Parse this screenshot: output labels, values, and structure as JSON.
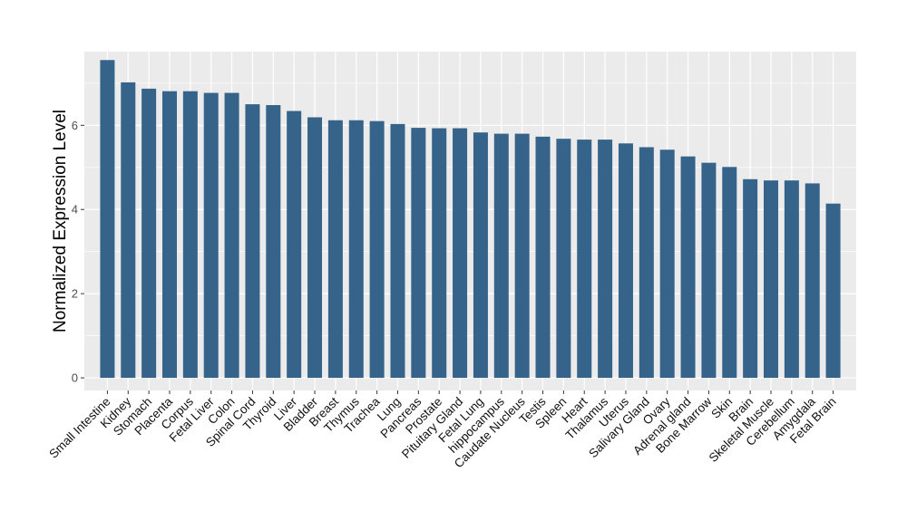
{
  "chart_data": {
    "type": "bar",
    "ylabel": "Normalized Expression Level",
    "xlabel": "",
    "ylim": [
      -0.3,
      7.75
    ],
    "yticks": [
      0,
      2,
      4,
      6
    ],
    "grid": true,
    "colors": {
      "bar": "#36638a",
      "panel": "#ebebeb",
      "grid": "#ffffff"
    },
    "categories": [
      "Small Intestine",
      "Kidney",
      "Stomach",
      "Placenta",
      "Corpus",
      "Fetal Liver",
      "Colon",
      "Spinal Cord",
      "Thyroid",
      "Liver",
      "Bladder",
      "Breast",
      "Thymus",
      "Trachea",
      "Lung",
      "Pancreas",
      "Prostate",
      "Pituitary Gland",
      "Fetal Lung",
      "hippocampus",
      "Caudate Nucleus",
      "Testis",
      "Spleen",
      "Heart",
      "Thalamus",
      "Uterus",
      "Salivary Gland",
      "Ovary",
      "Adrenal gland",
      "Bone Marrow",
      "Skin",
      "Brain",
      "Skeletal Muscle",
      "Cerebellum",
      "Amygdala",
      "Fetal Brain"
    ],
    "values": [
      7.55,
      7.02,
      6.87,
      6.81,
      6.81,
      6.77,
      6.77,
      6.5,
      6.48,
      6.34,
      6.19,
      6.12,
      6.12,
      6.1,
      6.03,
      5.94,
      5.93,
      5.93,
      5.83,
      5.8,
      5.8,
      5.73,
      5.68,
      5.66,
      5.66,
      5.57,
      5.48,
      5.42,
      5.26,
      5.11,
      5.01,
      4.72,
      4.69,
      4.69,
      4.62,
      4.14
    ]
  }
}
